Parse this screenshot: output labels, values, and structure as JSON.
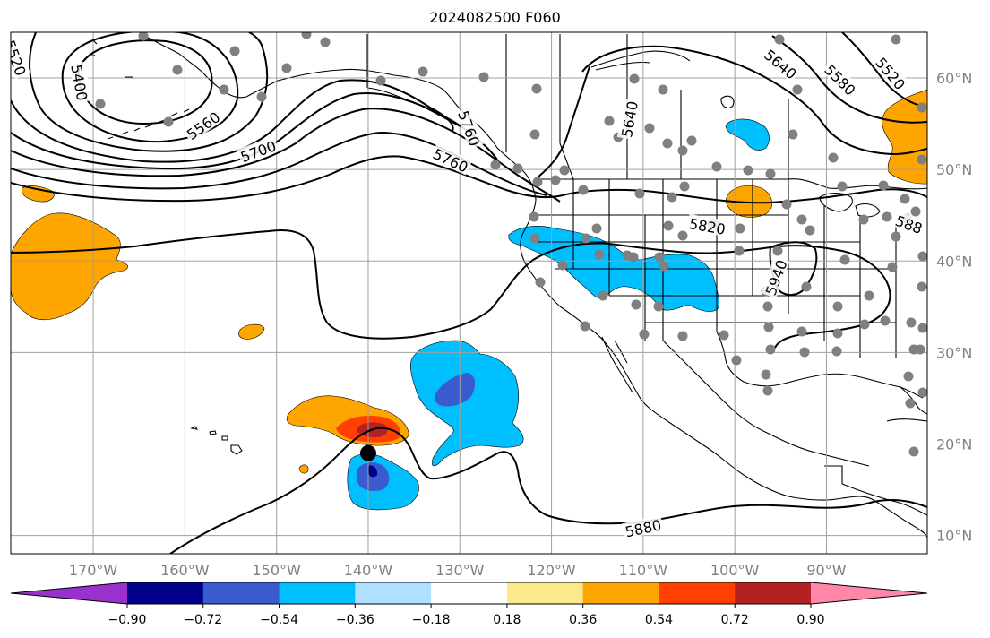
{
  "title": "2024082500 F060",
  "map": {
    "projection": "plate-carree",
    "lon_range": [
      -179,
      -79
    ],
    "lat_range": [
      8,
      65
    ],
    "lat_labels": [
      "10°N",
      "20°N",
      "30°N",
      "40°N",
      "50°N",
      "60°N"
    ],
    "lat_values": [
      10,
      20,
      30,
      40,
      50,
      60
    ],
    "lon_labels": [
      "170°W",
      "160°W",
      "150°W",
      "140°W",
      "130°W",
      "120°W",
      "110°W",
      "100°W",
      "90°W"
    ],
    "lon_values": [
      -170,
      -160,
      -150,
      -140,
      -130,
      -120,
      -110,
      -100,
      -90
    ],
    "grid": true,
    "storm_marker": {
      "lon": -140,
      "lat": 19
    },
    "contour_labels": [
      {
        "text": "5520",
        "lon": -178.5,
        "lat": 62.2,
        "rot": 70
      },
      {
        "text": "5400",
        "lon": -171.5,
        "lat": 59.5,
        "rot": 80
      },
      {
        "text": "5560",
        "lon": -158,
        "lat": 54.8,
        "rot": -35
      },
      {
        "text": "5700",
        "lon": -152,
        "lat": 52,
        "rot": -20
      },
      {
        "text": "5760",
        "lon": -131,
        "lat": 51,
        "rot": 25
      },
      {
        "text": "5760",
        "lon": -129,
        "lat": 54.5,
        "rot": 70
      },
      {
        "text": "5640",
        "lon": -111.5,
        "lat": 55.5,
        "rot": -80
      },
      {
        "text": "5640",
        "lon": -95,
        "lat": 61.5,
        "rot": 40
      },
      {
        "text": "5580",
        "lon": -88.5,
        "lat": 59.8,
        "rot": 45
      },
      {
        "text": "5520",
        "lon": -83,
        "lat": 60.5,
        "rot": 50
      },
      {
        "text": "5820",
        "lon": -103,
        "lat": 43.8,
        "rot": 10
      },
      {
        "text": "588",
        "lon": -81,
        "lat": 44,
        "rot": 20
      },
      {
        "text": "5940",
        "lon": -95.5,
        "lat": 38.2,
        "rot": -70
      },
      {
        "text": "5880",
        "lon": -110,
        "lat": 10.8,
        "rot": -12
      }
    ]
  },
  "colorbar": {
    "tick_labels": [
      "−0.90",
      "−0.72",
      "−0.54",
      "−0.36",
      "−0.18",
      "0.18",
      "0.36",
      "0.54",
      "0.72",
      "0.90"
    ],
    "colors": [
      "#9932cc",
      "#00008b",
      "#3a5bcd",
      "#00bfff",
      "#b0e0ff",
      "#ffffff",
      "#fde98d",
      "#ffa500",
      "#ff4000",
      "#b22222",
      "#ff88aa"
    ]
  },
  "colors": {
    "orange": "#ffa500",
    "red": "#ff4000",
    "darkred": "#b22222",
    "lightblue": "#00bfff",
    "midblue": "#3a5bcd",
    "navy": "#00008b",
    "station": "#808080"
  }
}
